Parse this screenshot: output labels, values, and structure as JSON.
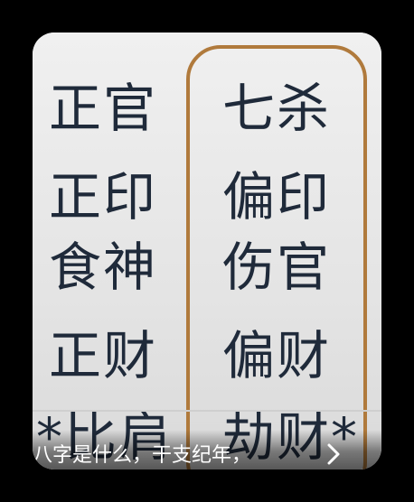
{
  "left_column": [
    "正官",
    "正印",
    "食神",
    "正财",
    "*比肩"
  ],
  "right_column": [
    "七杀",
    "偏印",
    "伤官",
    "偏财",
    "劫财*"
  ],
  "caption": "八字是什么，干支纪年，",
  "colors": {
    "text": "#1f2a3a",
    "frame": "#b07a3c",
    "background": "#e6e6e6"
  }
}
